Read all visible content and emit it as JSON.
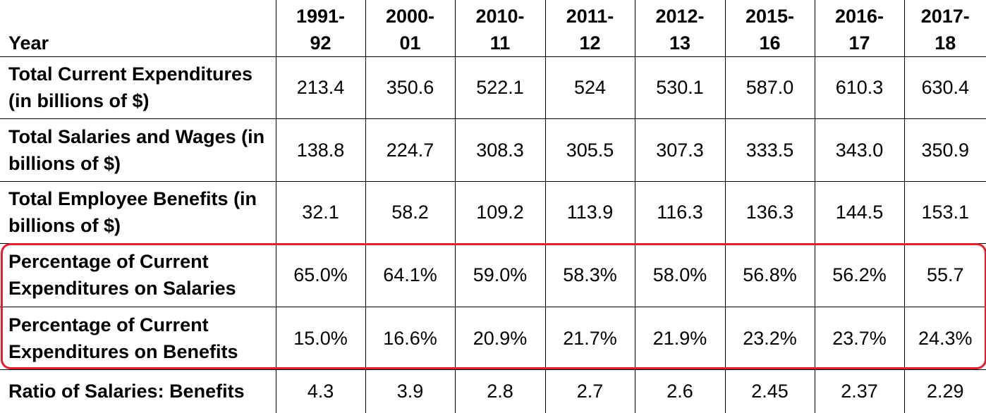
{
  "table": {
    "header_label": "Year",
    "years": [
      {
        "top": "1991-",
        "bottom": "92"
      },
      {
        "top": "2000-",
        "bottom": "01"
      },
      {
        "top": "2010-",
        "bottom": "11"
      },
      {
        "top": "2011-",
        "bottom": "12"
      },
      {
        "top": "2012-",
        "bottom": "13"
      },
      {
        "top": "2015-",
        "bottom": "16"
      },
      {
        "top": "2016-",
        "bottom": "17"
      },
      {
        "top": "2017-",
        "bottom": "18"
      }
    ],
    "rows": [
      {
        "label": "Total Current Expenditures (in billions of $)",
        "values": [
          "213.4",
          "350.6",
          "522.1",
          "524",
          "530.1",
          "587.0",
          "610.3",
          "630.4"
        ]
      },
      {
        "label": "Total Salaries and Wages (in billions of $)",
        "values": [
          "138.8",
          "224.7",
          "308.3",
          "305.5",
          "307.3",
          "333.5",
          "343.0",
          "350.9"
        ]
      },
      {
        "label": "Total Employee Benefits (in billions of $)",
        "values": [
          "32.1",
          "58.2",
          "109.2",
          "113.9",
          "116.3",
          "136.3",
          "144.5",
          "153.1"
        ]
      },
      {
        "label": "Percentage of Current Expenditures on Salaries",
        "values": [
          "65.0%",
          "64.1%",
          "59.0%",
          "58.3%",
          "58.0%",
          "56.8%",
          "56.2%",
          "55.7"
        ]
      },
      {
        "label": "Percentage of Current Expenditures on Benefits",
        "values": [
          "15.0%",
          "16.6%",
          "20.9%",
          "21.7%",
          "21.9%",
          "23.2%",
          "23.7%",
          "24.3%"
        ]
      },
      {
        "label": "Ratio of Salaries: Benefits",
        "values": [
          "4.3",
          "3.9",
          "2.8",
          "2.7",
          "2.6",
          "2.45",
          "2.37",
          "2.29"
        ]
      }
    ]
  },
  "highlight": {
    "color": "#e0202e",
    "rows_highlighted": [
      "Percentage of Current Expenditures on Salaries",
      "Percentage of Current Expenditures on Benefits"
    ]
  }
}
